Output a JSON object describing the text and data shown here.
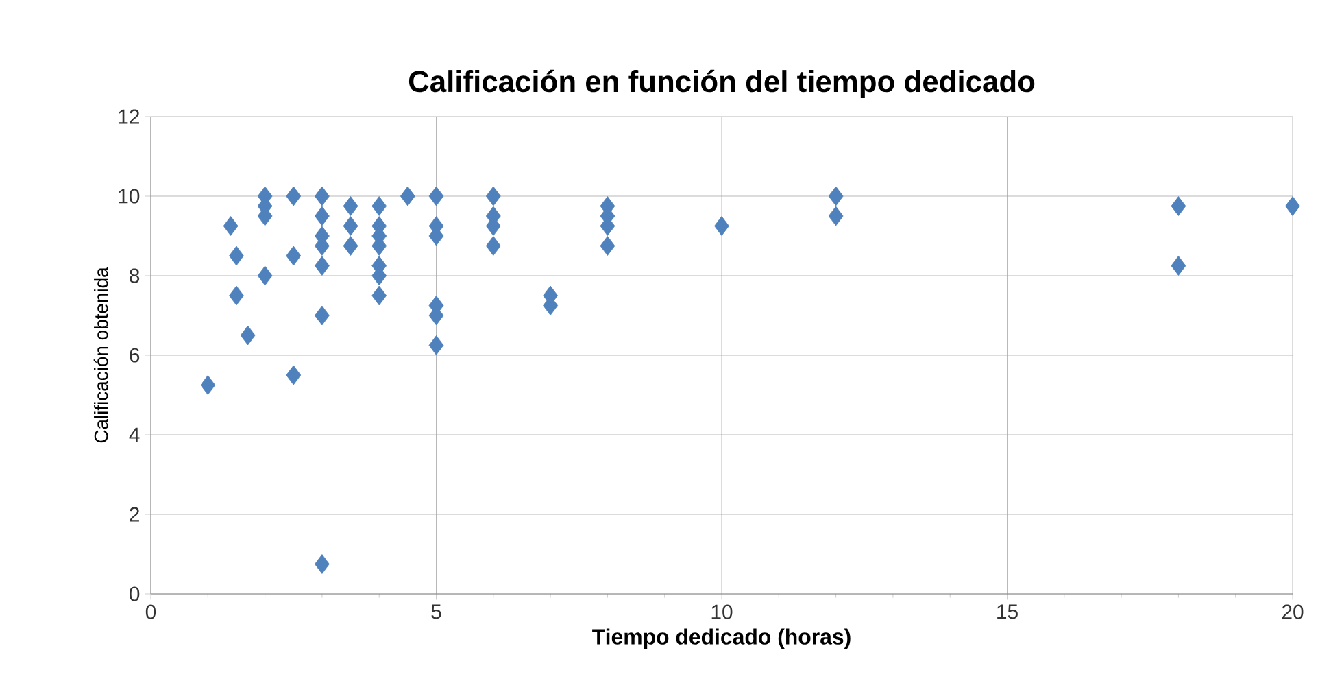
{
  "chart_data": {
    "type": "scatter",
    "title": "Calificación en función del tiempo dedicado",
    "xlabel": "Tiempo dedicado (horas)",
    "ylabel": "Calificación obtenida",
    "marker": "diamond",
    "grid": true,
    "x": [
      1,
      1.4,
      1.5,
      1.5,
      1.7,
      2,
      2,
      2,
      2,
      2.5,
      2.5,
      2.5,
      3,
      3,
      3,
      3,
      3,
      3,
      3,
      3.5,
      3.5,
      3.5,
      4,
      4,
      4,
      4,
      4,
      4,
      4,
      4.5,
      5,
      5,
      5,
      5,
      5,
      5,
      6,
      6,
      6,
      6,
      7,
      7,
      8,
      8,
      8,
      8,
      10,
      12,
      12,
      18,
      18,
      20
    ],
    "values": [
      5.25,
      9.25,
      8.5,
      7.5,
      6.5,
      10,
      9.75,
      9.5,
      8,
      10,
      8.5,
      5.5,
      10,
      9.5,
      9,
      8.75,
      8.25,
      7,
      0.75,
      9.75,
      9.25,
      8.75,
      9.75,
      9.25,
      9,
      8.75,
      8.25,
      8,
      7.5,
      10,
      10,
      9.25,
      9,
      7.25,
      7,
      6.25,
      10,
      9.5,
      9.25,
      8.75,
      7.5,
      7.25,
      9.75,
      9.5,
      9.25,
      8.75,
      9.25,
      10,
      9.5,
      9.75,
      8.25,
      9.75
    ],
    "color": "#4f81bd",
    "xlim": [
      0,
      20
    ],
    "xticks": [
      0,
      5,
      10,
      15,
      20
    ],
    "ylim": [
      0,
      12
    ],
    "yticks": [
      0,
      2,
      4,
      6,
      8,
      10,
      12
    ]
  }
}
